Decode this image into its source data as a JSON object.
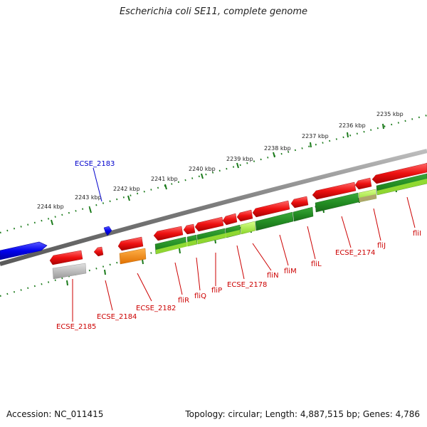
{
  "title": "Escherichia coli SE11, complete genome",
  "footer": {
    "accession": "Accession: NC_011415",
    "topology": "Topology: circular; Length: 4,887,515 bp; Genes: 4,786"
  },
  "scale_labels": [
    "2235 kbp",
    "2236 kbp",
    "2237 kbp",
    "2238 kbp",
    "2239 kbp",
    "2240 kbp",
    "2241 kbp",
    "2242 kbp",
    "2243 kbp",
    "2244 kbp"
  ],
  "gene_labels": {
    "ecse_2183": "ECSE_2183",
    "ecse_2185": "ECSE_2185",
    "ecse_2184": "ECSE_2184",
    "ecse_2182": "ECSE_2182",
    "flir": "fliR",
    "fliq": "fliQ",
    "flip": "fliP",
    "ecse_2178": "ECSE_2178",
    "flin": "fliN",
    "flim": "fliM",
    "flil": "fliL",
    "ecse_2174": "ECSE_2174",
    "flij": "fliJ",
    "flii": "fliI"
  },
  "colors": {
    "backbone": "#808080",
    "forward_gene": "#0000ee",
    "reverse_gene": "#ee1111",
    "reverse_label": "#cc0000",
    "forward_label": "#0000cc",
    "cds_feature": "#228b22",
    "cds_feature_light": "#a3e635",
    "misc_feature": "#ff8c00",
    "pseudo_feature": "#b3b3b3",
    "scale_tick": "#1a7a1a"
  }
}
